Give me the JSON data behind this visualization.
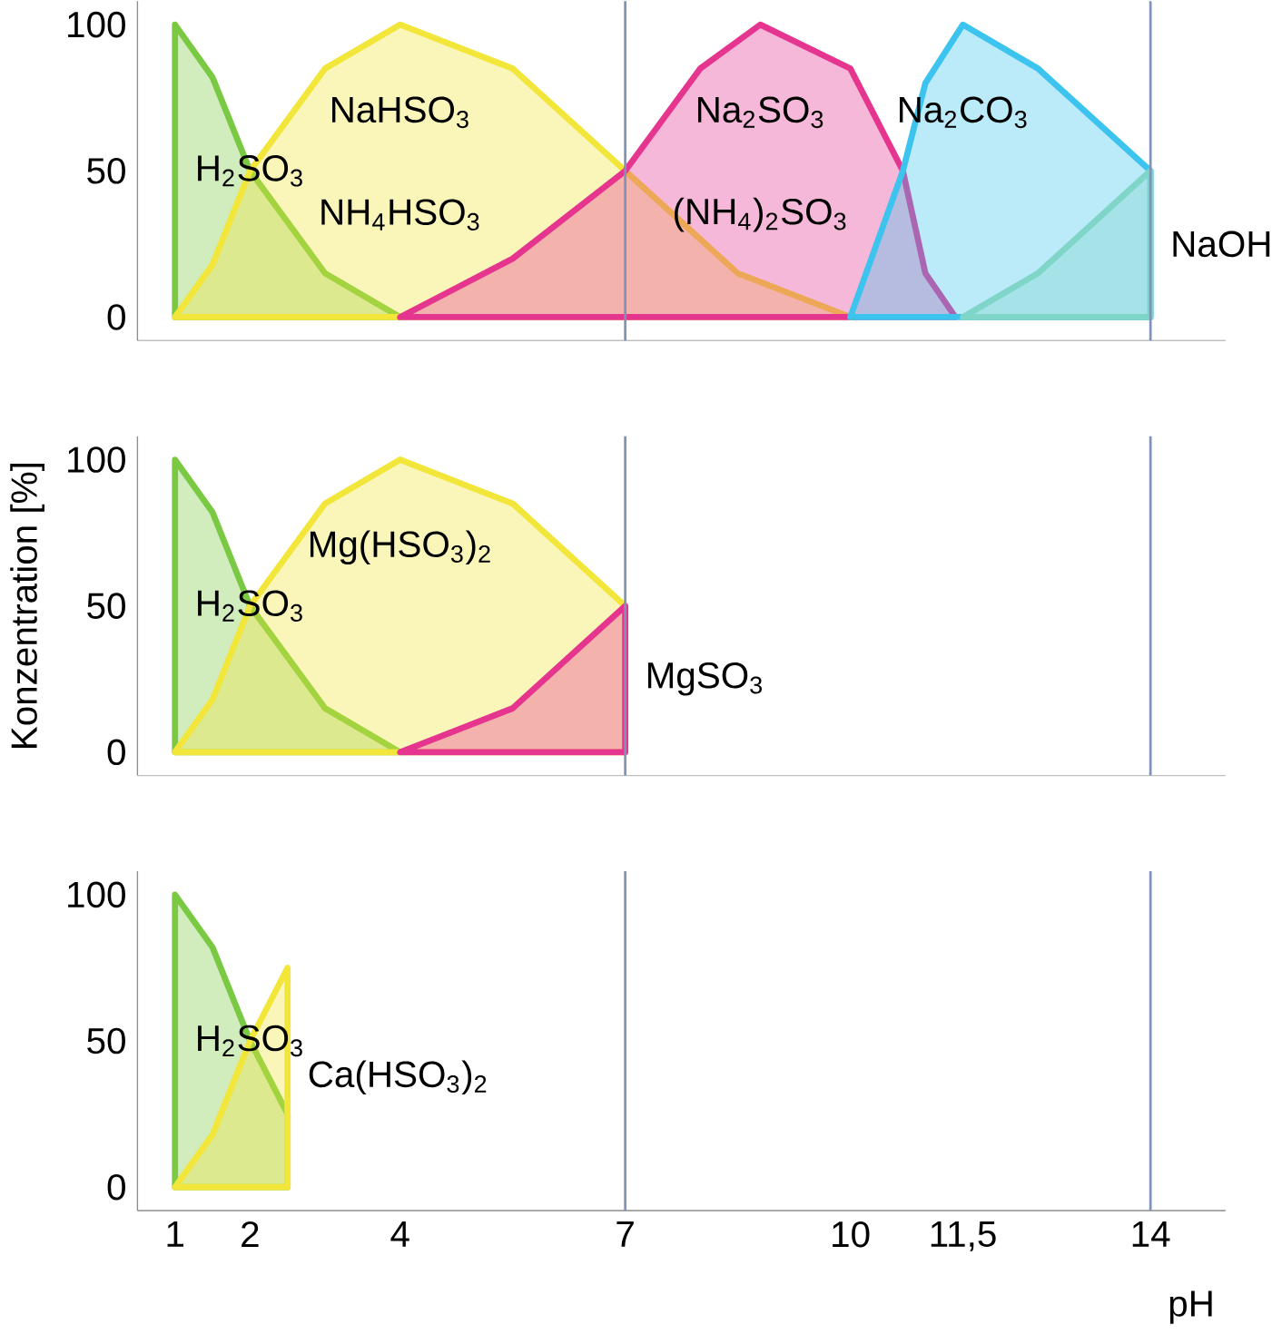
{
  "chart_data": [
    {
      "type": "area",
      "xlim": [
        0.5,
        15
      ],
      "ylim": [
        -8,
        108
      ],
      "yticks": [
        0,
        50,
        100
      ],
      "tick_labels": "y",
      "series": [
        {
          "name": "H$_{2}$SO$_{3}$",
          "color": "#7ac943",
          "x": [
            1,
            1.5,
            2,
            3,
            4
          ],
          "values": [
            100,
            82,
            50,
            15,
            0
          ]
        },
        {
          "name": "NaHSO$_{3}$",
          "color": "#f2e63a",
          "x": [
            1,
            1.5,
            2,
            3,
            4,
            5.5,
            7,
            8.5,
            10
          ],
          "values": [
            0,
            18,
            50,
            85,
            100,
            85,
            50,
            15,
            0
          ]
        },
        {
          "name": "Na$_{2}$SO$_{3}$",
          "color": "#e5358f",
          "x": [
            4,
            5.5,
            7,
            8,
            8.8,
            10,
            10.7,
            11,
            11.4
          ],
          "values": [
            0,
            20,
            50,
            85,
            100,
            85,
            50,
            15,
            0
          ]
        },
        {
          "name": "Na$_{2}$CO$_{3}$",
          "color": "#3cc3ee",
          "x": [
            10,
            10.7,
            11,
            11.5,
            12.5,
            14
          ],
          "values": [
            0,
            50,
            80,
            100,
            85,
            50
          ]
        },
        {
          "name": "NaOH",
          "color": "#7fd6c8",
          "x": [
            11.5,
            12.5,
            14
          ],
          "values": [
            0,
            15,
            50
          ]
        }
      ],
      "ref_lines": [
        {
          "axis": "x",
          "value": 7,
          "color": "#7f93b8"
        },
        {
          "axis": "x",
          "value": 14,
          "color": "#7f93b8"
        }
      ],
      "annotations": [
        "NH$_{4}$HSO$_{3}$",
        "(NH$_{4}$)$_{2}$SO$_{3}$"
      ]
    },
    {
      "type": "area",
      "xlim": [
        0.5,
        15
      ],
      "ylim": [
        -8,
        108
      ],
      "yticks": [
        0,
        50,
        100
      ],
      "tick_labels": "y",
      "ylabel": "Konzentration [%]",
      "series": [
        {
          "name": "H$_{2}$SO$_{3}$",
          "color": "#7ac943",
          "x": [
            1,
            1.5,
            2,
            3,
            4
          ],
          "values": [
            100,
            82,
            50,
            15,
            0
          ]
        },
        {
          "name": "Mg(HSO$_{3}$)$_{2}$",
          "color": "#f2e63a",
          "x": [
            1,
            1.5,
            2,
            3,
            4,
            5.5,
            7
          ],
          "values": [
            0,
            18,
            50,
            85,
            100,
            85,
            50
          ]
        },
        {
          "name": "MgSO$_{3}$",
          "color": "#e5358f",
          "x": [
            4,
            5.5,
            7
          ],
          "values": [
            0,
            15,
            50
          ]
        }
      ],
      "ref_lines": [
        {
          "axis": "x",
          "value": 7,
          "color": "#7f93b8"
        },
        {
          "axis": "x",
          "value": 14,
          "color": "#7f93b8"
        }
      ]
    },
    {
      "type": "area",
      "xlim": [
        0.5,
        15
      ],
      "ylim": [
        -8,
        108
      ],
      "yticks": [
        0,
        50,
        100
      ],
      "xlabel": "pH",
      "xticks": [
        1,
        2,
        4,
        7,
        10,
        {
          "value": 11.5,
          "label": "11,5"
        },
        14
      ],
      "series": [
        {
          "name": "H$_{2}$SO$_{3}$",
          "color": "#7ac943",
          "x": [
            1,
            1.5,
            2,
            2.5
          ],
          "values": [
            100,
            82,
            50,
            25
          ]
        },
        {
          "name": "Ca(HSO$_{3}$)$_{2}$",
          "color": "#f2e63a",
          "x": [
            1,
            1.5,
            2,
            2.5
          ],
          "values": [
            0,
            18,
            50,
            75
          ]
        }
      ],
      "ref_lines": [
        {
          "axis": "x",
          "value": 7,
          "color": "#7f93b8"
        },
        {
          "axis": "x",
          "value": 14,
          "color": "#7f93b8"
        }
      ]
    }
  ]
}
